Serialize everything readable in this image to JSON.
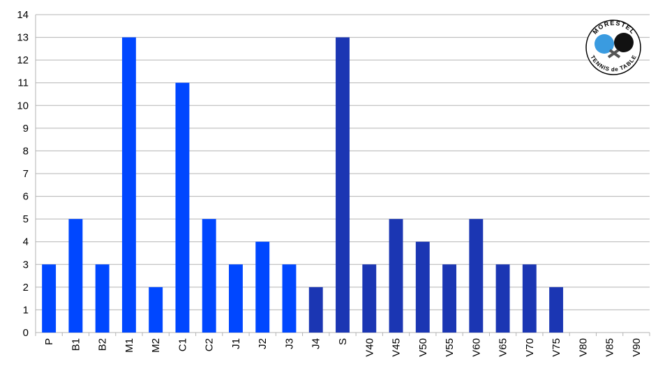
{
  "chart_data": {
    "type": "bar",
    "categories": [
      "P",
      "B1",
      "B2",
      "M1",
      "M2",
      "C1",
      "C2",
      "J1",
      "J2",
      "J3",
      "J4",
      "S",
      "V40",
      "V45",
      "V50",
      "V55",
      "V60",
      "V65",
      "V70",
      "V75",
      "V80",
      "V85",
      "V90"
    ],
    "values": [
      3,
      5,
      3,
      13,
      2,
      11,
      5,
      3,
      4,
      3,
      2,
      13,
      3,
      5,
      4,
      3,
      5,
      3,
      3,
      2,
      0,
      0,
      0
    ],
    "colors": [
      "#0047ff",
      "#0047ff",
      "#0047ff",
      "#0047ff",
      "#0047ff",
      "#0047ff",
      "#0047ff",
      "#0047ff",
      "#0047ff",
      "#0047ff",
      "#1b36b3",
      "#1b36b3",
      "#1b36b3",
      "#1b36b3",
      "#1b36b3",
      "#1b36b3",
      "#1b36b3",
      "#1b36b3",
      "#1b36b3",
      "#1b36b3",
      "#1b36b3",
      "#1b36b3",
      "#1b36b3"
    ],
    "ylim": [
      0,
      14
    ],
    "yticks": [
      0,
      1,
      2,
      3,
      4,
      5,
      6,
      7,
      8,
      9,
      10,
      11,
      12,
      13,
      14
    ],
    "grid": true,
    "logo": {
      "top": "MORESTEL",
      "bottom": "TENNIS de TABLE"
    }
  }
}
